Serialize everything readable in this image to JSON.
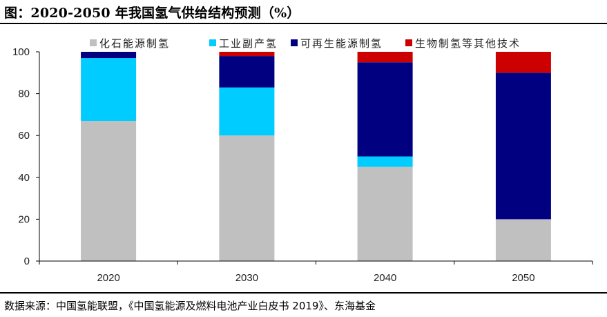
{
  "figure_title": "图：2020-2050 年我国氢气供给结构预测（%）",
  "source_note": "数据来源：中国氢能联盟，《中国氢能源及燃料电池产业白皮书 2019》、东海基金",
  "chart_data": {
    "type": "bar",
    "stacked": true,
    "categories": [
      "2020",
      "2030",
      "2040",
      "2050"
    ],
    "series": [
      {
        "name": "化石能源制氢",
        "color": "#c0c0c0",
        "values": [
          67,
          60,
          45,
          20
        ]
      },
      {
        "name": "工业副产氢",
        "color": "#00ccff",
        "values": [
          30,
          23,
          5,
          0
        ]
      },
      {
        "name": "可再生能源制氢",
        "color": "#000080",
        "values": [
          3,
          15,
          45,
          70
        ]
      },
      {
        "name": "生物制氢等其他技术",
        "color": "#cc0000",
        "values": [
          0,
          2,
          5,
          10
        ]
      }
    ],
    "yticks": [
      "0",
      "20",
      "40",
      "60",
      "80",
      "100"
    ],
    "ylim": [
      0,
      100
    ],
    "legend_position": "top",
    "grid": false
  }
}
